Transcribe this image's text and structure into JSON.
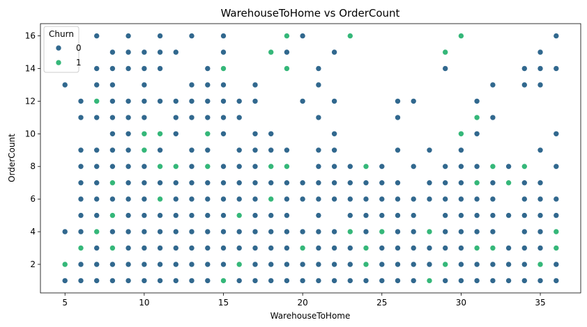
{
  "chart_data": {
    "type": "scatter",
    "title": "WarehouseToHome vs OrderCount",
    "xlabel": "WarehouseToHome",
    "ylabel": "OrderCount",
    "xlim": [
      3.45,
      37.55
    ],
    "ylim": [
      0.25,
      16.75
    ],
    "xticks": [
      5,
      10,
      15,
      20,
      25,
      30,
      35
    ],
    "yticks": [
      2,
      4,
      6,
      8,
      10,
      12,
      14,
      16
    ],
    "grid": false,
    "legend": {
      "title": "Churn",
      "placement": "top-left"
    },
    "series": [
      {
        "name": "0",
        "color": "#31688e",
        "points": [
          [
            5,
            1
          ],
          [
            5,
            4
          ],
          [
            5,
            13
          ],
          [
            6,
            1
          ],
          [
            6,
            2
          ],
          [
            6,
            4
          ],
          [
            6,
            5
          ],
          [
            6,
            6
          ],
          [
            6,
            7
          ],
          [
            6,
            8
          ],
          [
            6,
            9
          ],
          [
            6,
            11
          ],
          [
            6,
            12
          ],
          [
            7,
            1
          ],
          [
            7,
            2
          ],
          [
            7,
            3
          ],
          [
            7,
            5
          ],
          [
            7,
            6
          ],
          [
            7,
            7
          ],
          [
            7,
            8
          ],
          [
            7,
            9
          ],
          [
            7,
            11
          ],
          [
            7,
            13
          ],
          [
            7,
            14
          ],
          [
            7,
            16
          ],
          [
            8,
            1
          ],
          [
            8,
            2
          ],
          [
            8,
            4
          ],
          [
            8,
            6
          ],
          [
            8,
            8
          ],
          [
            8,
            9
          ],
          [
            8,
            10
          ],
          [
            8,
            11
          ],
          [
            8,
            12
          ],
          [
            8,
            13
          ],
          [
            8,
            14
          ],
          [
            8,
            15
          ],
          [
            9,
            1
          ],
          [
            9,
            2
          ],
          [
            9,
            3
          ],
          [
            9,
            4
          ],
          [
            9,
            5
          ],
          [
            9,
            6
          ],
          [
            9,
            7
          ],
          [
            9,
            8
          ],
          [
            9,
            9
          ],
          [
            9,
            10
          ],
          [
            9,
            11
          ],
          [
            9,
            12
          ],
          [
            9,
            14
          ],
          [
            9,
            15
          ],
          [
            9,
            16
          ],
          [
            10,
            1
          ],
          [
            10,
            2
          ],
          [
            10,
            3
          ],
          [
            10,
            4
          ],
          [
            10,
            5
          ],
          [
            10,
            6
          ],
          [
            10,
            7
          ],
          [
            10,
            8
          ],
          [
            10,
            11
          ],
          [
            10,
            12
          ],
          [
            10,
            13
          ],
          [
            10,
            14
          ],
          [
            10,
            15
          ],
          [
            11,
            1
          ],
          [
            11,
            2
          ],
          [
            11,
            3
          ],
          [
            11,
            4
          ],
          [
            11,
            5
          ],
          [
            11,
            7
          ],
          [
            11,
            9
          ],
          [
            11,
            12
          ],
          [
            11,
            14
          ],
          [
            11,
            15
          ],
          [
            11,
            16
          ],
          [
            12,
            1
          ],
          [
            12,
            2
          ],
          [
            12,
            3
          ],
          [
            12,
            4
          ],
          [
            12,
            5
          ],
          [
            12,
            6
          ],
          [
            12,
            7
          ],
          [
            12,
            10
          ],
          [
            12,
            11
          ],
          [
            12,
            12
          ],
          [
            12,
            15
          ],
          [
            13,
            1
          ],
          [
            13,
            2
          ],
          [
            13,
            3
          ],
          [
            13,
            4
          ],
          [
            13,
            5
          ],
          [
            13,
            6
          ],
          [
            13,
            7
          ],
          [
            13,
            8
          ],
          [
            13,
            9
          ],
          [
            13,
            11
          ],
          [
            13,
            12
          ],
          [
            13,
            13
          ],
          [
            13,
            16
          ],
          [
            14,
            1
          ],
          [
            14,
            2
          ],
          [
            14,
            3
          ],
          [
            14,
            4
          ],
          [
            14,
            5
          ],
          [
            14,
            6
          ],
          [
            14,
            7
          ],
          [
            14,
            9
          ],
          [
            14,
            11
          ],
          [
            14,
            12
          ],
          [
            14,
            13
          ],
          [
            14,
            14
          ],
          [
            15,
            2
          ],
          [
            15,
            3
          ],
          [
            15,
            4
          ],
          [
            15,
            5
          ],
          [
            15,
            6
          ],
          [
            15,
            7
          ],
          [
            15,
            8
          ],
          [
            15,
            10
          ],
          [
            15,
            11
          ],
          [
            15,
            12
          ],
          [
            15,
            13
          ],
          [
            15,
            15
          ],
          [
            15,
            16
          ],
          [
            16,
            1
          ],
          [
            16,
            3
          ],
          [
            16,
            4
          ],
          [
            16,
            6
          ],
          [
            16,
            7
          ],
          [
            16,
            8
          ],
          [
            16,
            9
          ],
          [
            16,
            11
          ],
          [
            16,
            12
          ],
          [
            17,
            1
          ],
          [
            17,
            2
          ],
          [
            17,
            3
          ],
          [
            17,
            4
          ],
          [
            17,
            5
          ],
          [
            17,
            6
          ],
          [
            17,
            7
          ],
          [
            17,
            8
          ],
          [
            17,
            9
          ],
          [
            17,
            10
          ],
          [
            17,
            12
          ],
          [
            17,
            13
          ],
          [
            18,
            1
          ],
          [
            18,
            2
          ],
          [
            18,
            3
          ],
          [
            18,
            4
          ],
          [
            18,
            5
          ],
          [
            18,
            7
          ],
          [
            18,
            9
          ],
          [
            18,
            10
          ],
          [
            19,
            1
          ],
          [
            19,
            2
          ],
          [
            19,
            3
          ],
          [
            19,
            4
          ],
          [
            19,
            5
          ],
          [
            19,
            6
          ],
          [
            19,
            7
          ],
          [
            19,
            9
          ],
          [
            19,
            15
          ],
          [
            20,
            1
          ],
          [
            20,
            2
          ],
          [
            20,
            4
          ],
          [
            20,
            6
          ],
          [
            20,
            7
          ],
          [
            20,
            12
          ],
          [
            20,
            16
          ],
          [
            21,
            1
          ],
          [
            21,
            2
          ],
          [
            21,
            3
          ],
          [
            21,
            4
          ],
          [
            21,
            5
          ],
          [
            21,
            6
          ],
          [
            21,
            7
          ],
          [
            21,
            8
          ],
          [
            21,
            9
          ],
          [
            21,
            11
          ],
          [
            21,
            13
          ],
          [
            21,
            14
          ],
          [
            22,
            1
          ],
          [
            22,
            2
          ],
          [
            22,
            3
          ],
          [
            22,
            4
          ],
          [
            22,
            6
          ],
          [
            22,
            7
          ],
          [
            22,
            8
          ],
          [
            22,
            9
          ],
          [
            22,
            10
          ],
          [
            22,
            12
          ],
          [
            22,
            15
          ],
          [
            23,
            1
          ],
          [
            23,
            2
          ],
          [
            23,
            3
          ],
          [
            23,
            5
          ],
          [
            23,
            6
          ],
          [
            23,
            7
          ],
          [
            23,
            8
          ],
          [
            24,
            1
          ],
          [
            24,
            4
          ],
          [
            24,
            5
          ],
          [
            24,
            6
          ],
          [
            24,
            7
          ],
          [
            25,
            1
          ],
          [
            25,
            2
          ],
          [
            25,
            3
          ],
          [
            25,
            5
          ],
          [
            25,
            6
          ],
          [
            25,
            7
          ],
          [
            25,
            8
          ],
          [
            26,
            1
          ],
          [
            26,
            2
          ],
          [
            26,
            3
          ],
          [
            26,
            4
          ],
          [
            26,
            5
          ],
          [
            26,
            6
          ],
          [
            26,
            7
          ],
          [
            26,
            9
          ],
          [
            26,
            11
          ],
          [
            26,
            12
          ],
          [
            27,
            1
          ],
          [
            27,
            2
          ],
          [
            27,
            3
          ],
          [
            27,
            4
          ],
          [
            27,
            5
          ],
          [
            27,
            6
          ],
          [
            27,
            8
          ],
          [
            27,
            12
          ],
          [
            28,
            2
          ],
          [
            28,
            3
          ],
          [
            28,
            6
          ],
          [
            28,
            7
          ],
          [
            28,
            9
          ],
          [
            29,
            1
          ],
          [
            29,
            3
          ],
          [
            29,
            4
          ],
          [
            29,
            5
          ],
          [
            29,
            6
          ],
          [
            29,
            7
          ],
          [
            29,
            8
          ],
          [
            29,
            14
          ],
          [
            30,
            1
          ],
          [
            30,
            2
          ],
          [
            30,
            3
          ],
          [
            30,
            4
          ],
          [
            30,
            5
          ],
          [
            30,
            6
          ],
          [
            30,
            7
          ],
          [
            30,
            8
          ],
          [
            30,
            9
          ],
          [
            31,
            1
          ],
          [
            31,
            2
          ],
          [
            31,
            4
          ],
          [
            31,
            5
          ],
          [
            31,
            6
          ],
          [
            31,
            8
          ],
          [
            31,
            10
          ],
          [
            31,
            12
          ],
          [
            32,
            1
          ],
          [
            32,
            2
          ],
          [
            32,
            4
          ],
          [
            32,
            5
          ],
          [
            32,
            6
          ],
          [
            32,
            7
          ],
          [
            32,
            11
          ],
          [
            32,
            13
          ],
          [
            33,
            1
          ],
          [
            33,
            2
          ],
          [
            33,
            3
          ],
          [
            33,
            5
          ],
          [
            33,
            8
          ],
          [
            34,
            1
          ],
          [
            34,
            2
          ],
          [
            34,
            3
          ],
          [
            34,
            4
          ],
          [
            34,
            5
          ],
          [
            34,
            6
          ],
          [
            34,
            7
          ],
          [
            34,
            13
          ],
          [
            34,
            14
          ],
          [
            35,
            1
          ],
          [
            35,
            3
          ],
          [
            35,
            4
          ],
          [
            35,
            5
          ],
          [
            35,
            6
          ],
          [
            35,
            7
          ],
          [
            35,
            9
          ],
          [
            35,
            13
          ],
          [
            35,
            14
          ],
          [
            35,
            15
          ],
          [
            36,
            1
          ],
          [
            36,
            2
          ],
          [
            36,
            5
          ],
          [
            36,
            6
          ],
          [
            36,
            8
          ],
          [
            36,
            10
          ],
          [
            36,
            14
          ],
          [
            36,
            16
          ]
        ]
      },
      {
        "name": "1",
        "color": "#35b779",
        "points": [
          [
            5,
            2
          ],
          [
            6,
            3
          ],
          [
            7,
            4
          ],
          [
            7,
            12
          ],
          [
            8,
            3
          ],
          [
            8,
            5
          ],
          [
            8,
            7
          ],
          [
            10,
            9
          ],
          [
            10,
            10
          ],
          [
            11,
            6
          ],
          [
            11,
            8
          ],
          [
            11,
            10
          ],
          [
            12,
            8
          ],
          [
            14,
            8
          ],
          [
            14,
            10
          ],
          [
            15,
            1
          ],
          [
            15,
            14
          ],
          [
            16,
            2
          ],
          [
            16,
            5
          ],
          [
            18,
            6
          ],
          [
            18,
            8
          ],
          [
            18,
            15
          ],
          [
            19,
            8
          ],
          [
            19,
            14
          ],
          [
            19,
            16
          ],
          [
            20,
            3
          ],
          [
            23,
            4
          ],
          [
            23,
            16
          ],
          [
            24,
            2
          ],
          [
            24,
            3
          ],
          [
            24,
            8
          ],
          [
            25,
            4
          ],
          [
            28,
            1
          ],
          [
            28,
            4
          ],
          [
            29,
            2
          ],
          [
            29,
            15
          ],
          [
            30,
            10
          ],
          [
            30,
            16
          ],
          [
            31,
            3
          ],
          [
            31,
            7
          ],
          [
            31,
            11
          ],
          [
            32,
            3
          ],
          [
            32,
            8
          ],
          [
            33,
            7
          ],
          [
            34,
            8
          ],
          [
            35,
            2
          ],
          [
            36,
            3
          ],
          [
            36,
            4
          ]
        ]
      }
    ]
  }
}
